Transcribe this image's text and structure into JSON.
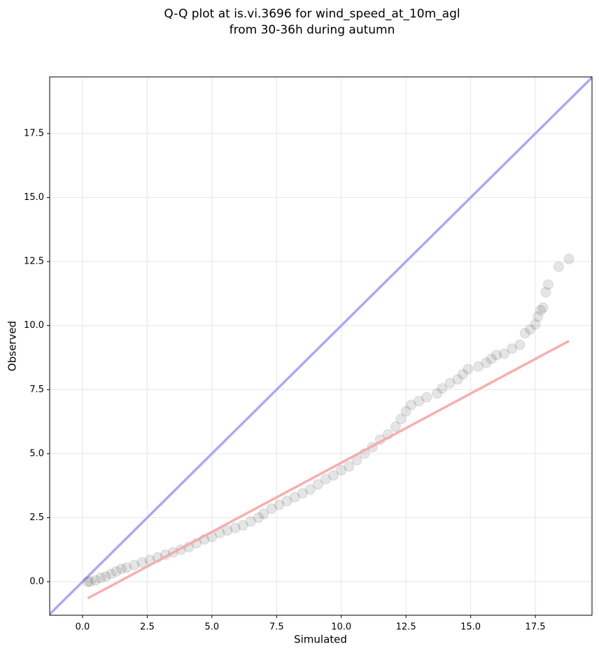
{
  "chart_data": {
    "type": "scatter",
    "title": [
      "Q-Q plot at is.vi.3696 for wind_speed_at_10m_agl",
      "from 30-36h during autumn"
    ],
    "x_label": "Simulated",
    "y_label": "Observed",
    "xlim": [
      -1.27,
      19.69
    ],
    "ylim": [
      -1.31,
      19.71
    ],
    "xticks": [
      {
        "value": 0,
        "label": "0.0"
      },
      2.5,
      {
        "value": 5,
        "label": "5.0"
      },
      7.5,
      {
        "value": 10,
        "label": "10.0"
      },
      12.5,
      {
        "value": 15,
        "label": "15.0"
      },
      17.5
    ],
    "yticks": [
      {
        "value": 0,
        "label": "0.0"
      },
      2.5,
      {
        "value": 5,
        "label": "5.0"
      },
      7.5,
      {
        "value": 10,
        "label": "10.0"
      },
      12.5,
      {
        "value": 15,
        "label": "15.0"
      },
      17.5
    ],
    "grid": true,
    "color": "#000000",
    "identity_line_color": "#aaaaf0",
    "fit_line": {
      "color": "#f4a6a6",
      "x": [
        0.2,
        18.8
      ],
      "y": [
        -0.65,
        9.4
      ]
    },
    "x": [
      0.2,
      0.3,
      0.5,
      0.7,
      0.9,
      1.1,
      1.3,
      1.5,
      1.7,
      2.0,
      2.3,
      2.6,
      2.9,
      3.2,
      3.5,
      3.8,
      4.1,
      4.4,
      4.7,
      5.0,
      5.3,
      5.6,
      5.9,
      6.2,
      6.5,
      6.8,
      7.0,
      7.3,
      7.6,
      7.9,
      8.2,
      8.5,
      8.8,
      9.1,
      9.4,
      9.7,
      10.0,
      10.3,
      10.6,
      10.9,
      11.2,
      11.5,
      11.8,
      12.1,
      12.3,
      12.5,
      12.7,
      13.0,
      13.3,
      13.7,
      13.9,
      14.2,
      14.5,
      14.7,
      14.9,
      15.3,
      15.6,
      15.8,
      16.0,
      16.3,
      16.6,
      16.9,
      17.1,
      17.3,
      17.5,
      17.6,
      17.7,
      17.8,
      17.9,
      18.0,
      18.4,
      18.8
    ],
    "y": [
      0,
      0,
      0.05,
      0.15,
      0.2,
      0.3,
      0.4,
      0.5,
      0.55,
      0.65,
      0.75,
      0.85,
      0.95,
      1.05,
      1.15,
      1.25,
      1.35,
      1.5,
      1.65,
      1.75,
      1.9,
      2.0,
      2.1,
      2.2,
      2.35,
      2.5,
      2.65,
      2.85,
      3.0,
      3.15,
      3.3,
      3.45,
      3.6,
      3.8,
      4.0,
      4.15,
      4.35,
      4.5,
      4.75,
      5.0,
      5.25,
      5.55,
      5.75,
      6.05,
      6.35,
      6.65,
      6.9,
      7.05,
      7.2,
      7.35,
      7.55,
      7.75,
      7.9,
      8.1,
      8.3,
      8.4,
      8.55,
      8.7,
      8.85,
      8.9,
      9.1,
      9.25,
      9.7,
      9.85,
      10.05,
      10.35,
      10.6,
      10.7,
      11.3,
      11.6,
      12.3,
      12.6
    ]
  }
}
